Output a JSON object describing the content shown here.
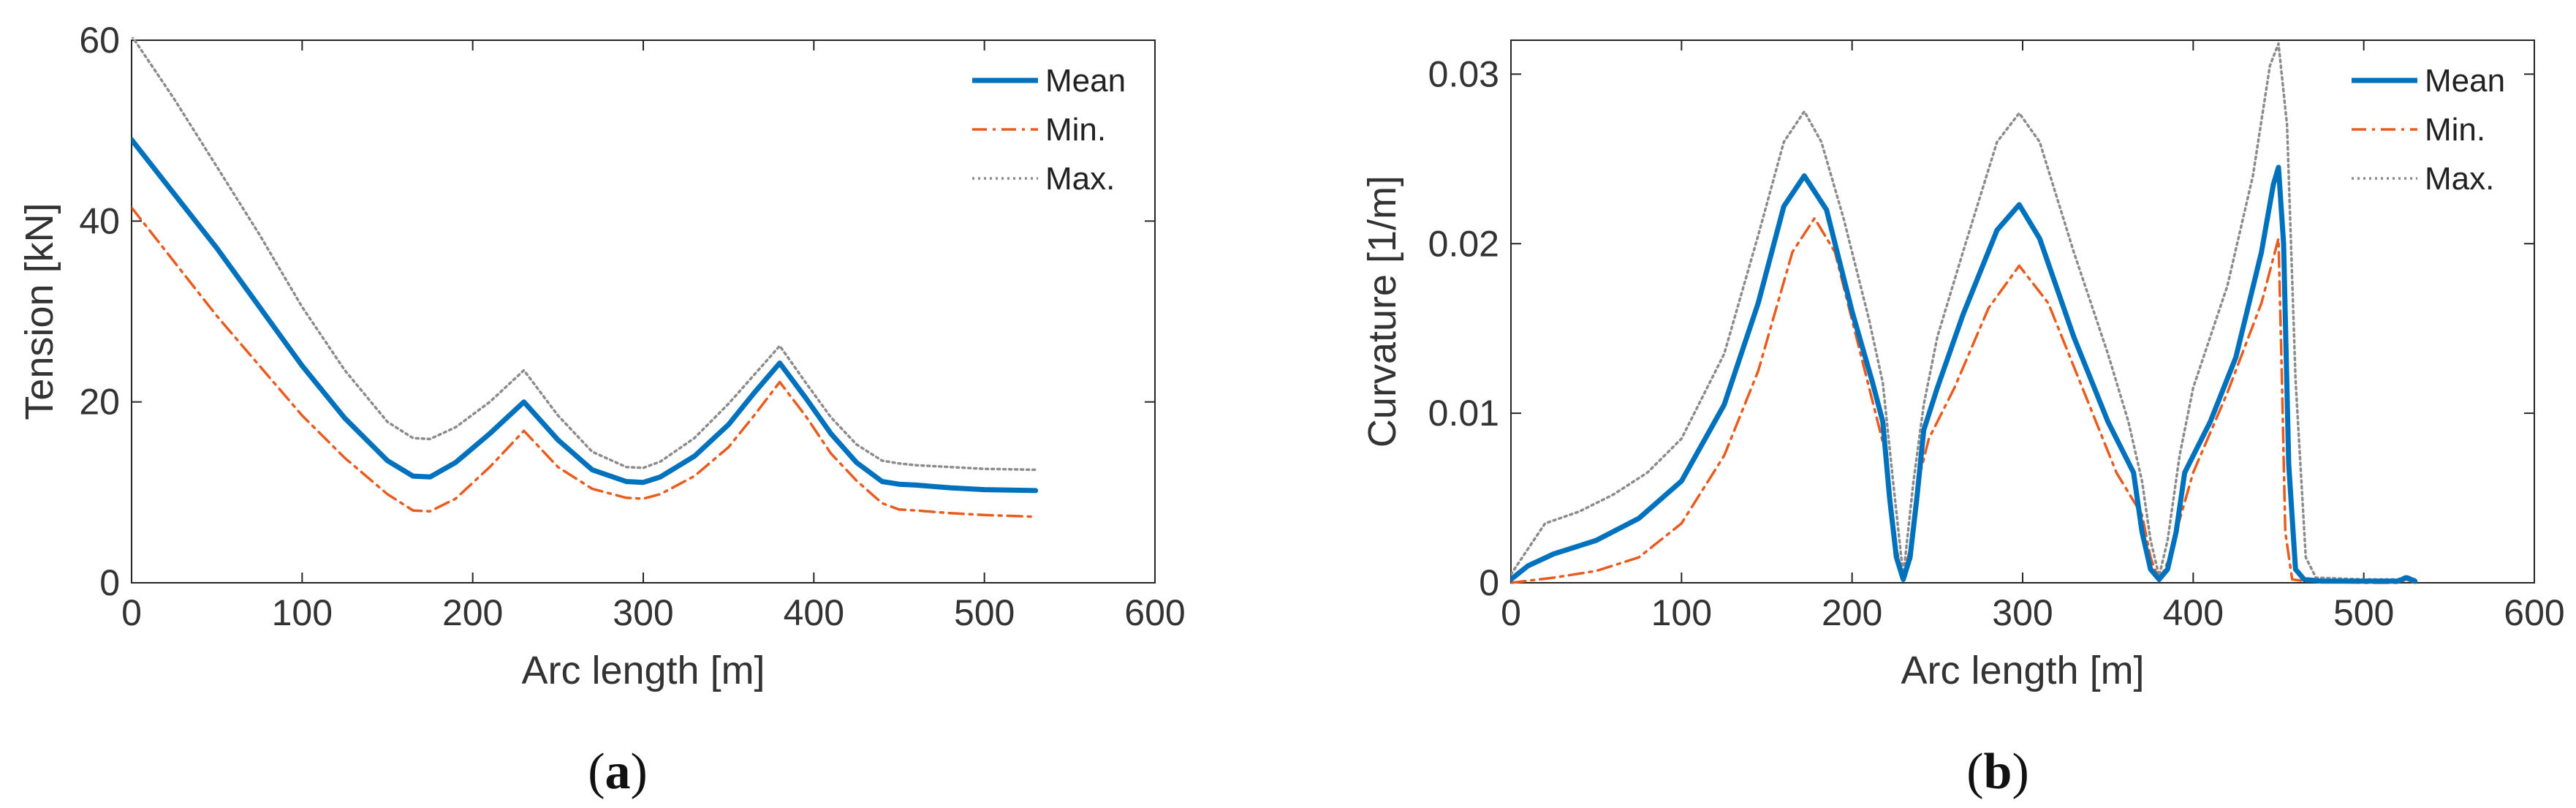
{
  "chart_data": [
    {
      "panel": "(a)",
      "caption_open": "(",
      "caption_letter": "a",
      "caption_close": ")",
      "type": "line",
      "xlabel": "Arc length [m]",
      "ylabel": "Tension [kN]",
      "xlim": [
        0,
        600
      ],
      "ylim": [
        0,
        60
      ],
      "xticks": [
        0,
        100,
        200,
        300,
        400,
        500,
        600
      ],
      "xtick_labels": [
        "0",
        "100",
        "200",
        "300",
        "400",
        "500",
        "600"
      ],
      "yticks": [
        0,
        20,
        40,
        60
      ],
      "ytick_labels": [
        "0",
        "20",
        "40",
        "60"
      ],
      "grid": false,
      "legend_position": "top-right",
      "series": [
        {
          "name": "Mean",
          "color": "#0072BD",
          "style": "solid",
          "x": [
            0,
            25,
            50,
            75,
            100,
            125,
            150,
            165,
            175,
            190,
            210,
            230,
            250,
            270,
            290,
            300,
            310,
            330,
            350,
            365,
            380,
            395,
            410,
            425,
            440,
            450,
            460,
            480,
            500,
            530
          ],
          "y": [
            49,
            43,
            37,
            30.5,
            24,
            18.2,
            13.5,
            11.8,
            11.7,
            13.3,
            16.5,
            20,
            15.8,
            12.5,
            11.2,
            11.1,
            11.7,
            14,
            17.5,
            21,
            24.3,
            20.5,
            16.5,
            13.3,
            11.2,
            10.9,
            10.8,
            10.5,
            10.3,
            10.2
          ]
        },
        {
          "name": "Min.",
          "color": "#EA5B1E",
          "style": "dashdot",
          "x": [
            0,
            25,
            50,
            75,
            100,
            125,
            150,
            165,
            175,
            190,
            210,
            230,
            250,
            270,
            290,
            300,
            310,
            330,
            350,
            365,
            380,
            395,
            410,
            425,
            440,
            450,
            460,
            480,
            500,
            530
          ],
          "y": [
            41.5,
            35.5,
            29.5,
            24,
            18.5,
            13.8,
            9.8,
            8.0,
            7.9,
            9.3,
            12.8,
            16.8,
            12.8,
            10.4,
            9.4,
            9.3,
            9.8,
            11.8,
            15,
            18.5,
            22.2,
            18.5,
            14.3,
            11.3,
            8.8,
            8.1,
            8.0,
            7.7,
            7.5,
            7.3
          ]
        },
        {
          "name": "Max.",
          "color": "#8C8C8C",
          "style": "dotted",
          "x": [
            0,
            25,
            50,
            75,
            100,
            125,
            150,
            165,
            175,
            190,
            210,
            230,
            250,
            270,
            290,
            300,
            310,
            330,
            350,
            365,
            380,
            395,
            410,
            425,
            440,
            450,
            460,
            480,
            500,
            530
          ],
          "y": [
            60.5,
            53.5,
            46,
            38.5,
            30.5,
            23.5,
            17.8,
            16.0,
            15.9,
            17.2,
            20,
            23.5,
            18.5,
            14.5,
            12.8,
            12.7,
            13.4,
            16,
            19.8,
            23,
            26.2,
            22.2,
            18.3,
            15.3,
            13.5,
            13.2,
            13.0,
            12.8,
            12.6,
            12.5
          ]
        }
      ]
    },
    {
      "panel": "(b)",
      "caption_open": "(",
      "caption_letter": "b",
      "caption_close": ")",
      "type": "line",
      "xlabel": "Arc length [m]",
      "ylabel": "Curvature [1/m]",
      "xlim": [
        0,
        600
      ],
      "ylim": [
        0,
        0.032
      ],
      "xticks": [
        0,
        100,
        200,
        300,
        400,
        500,
        600
      ],
      "xtick_labels": [
        "0",
        "100",
        "200",
        "300",
        "400",
        "500",
        "600"
      ],
      "yticks": [
        0,
        0.01,
        0.02,
        0.03
      ],
      "ytick_labels": [
        "0",
        "0.01",
        "0.02",
        "0.03"
      ],
      "grid": false,
      "legend_position": "top-right",
      "series": [
        {
          "name": "Mean",
          "color": "#0072BD",
          "style": "solid",
          "x": [
            0,
            10,
            25,
            50,
            75,
            100,
            125,
            145,
            160,
            172,
            185,
            200,
            212,
            218,
            222,
            226,
            230,
            234,
            238,
            242,
            250,
            265,
            285,
            298,
            310,
            330,
            350,
            365,
            370,
            375,
            380,
            385,
            390,
            395,
            410,
            425,
            440,
            447,
            450,
            453,
            456,
            460,
            465,
            475,
            500,
            520,
            525,
            530
          ],
          "y": [
            0.0002,
            0.001,
            0.0017,
            0.0025,
            0.0038,
            0.006,
            0.0105,
            0.0165,
            0.0222,
            0.024,
            0.022,
            0.016,
            0.0118,
            0.0095,
            0.005,
            0.0015,
            0.0002,
            0.0015,
            0.005,
            0.009,
            0.0115,
            0.0158,
            0.0208,
            0.0223,
            0.0203,
            0.0145,
            0.0095,
            0.0065,
            0.003,
            0.0008,
            0.0002,
            0.0008,
            0.003,
            0.0065,
            0.0095,
            0.0133,
            0.0195,
            0.0235,
            0.0245,
            0.02,
            0.007,
            0.0008,
            0.0002,
            0.0001,
            0.0001,
            0.0001,
            0.0003,
            0.0001
          ]
        },
        {
          "name": "Min.",
          "color": "#EA5B1E",
          "style": "dashdot",
          "x": [
            0,
            25,
            50,
            75,
            100,
            125,
            145,
            165,
            178,
            190,
            205,
            215,
            220,
            225,
            230,
            235,
            240,
            245,
            260,
            280,
            298,
            315,
            335,
            355,
            370,
            375,
            380,
            385,
            390,
            400,
            420,
            440,
            450,
            452,
            454,
            458,
            465,
            500,
            520,
            525,
            530
          ],
          "y": [
            0,
            0.0003,
            0.0007,
            0.0015,
            0.0035,
            0.0075,
            0.0125,
            0.0195,
            0.0215,
            0.0195,
            0.0135,
            0.0095,
            0.0075,
            0.0025,
            0.0002,
            0.0025,
            0.0065,
            0.0085,
            0.0115,
            0.0162,
            0.0187,
            0.0165,
            0.0115,
            0.0065,
            0.004,
            0.0015,
            0.0001,
            0.0012,
            0.003,
            0.0065,
            0.0112,
            0.0165,
            0.0203,
            0.012,
            0.003,
            0.0002,
            0.0001,
            0,
            0,
            0.0002,
            0
          ]
        },
        {
          "name": "Max.",
          "color": "#8C8C8C",
          "style": "dotted",
          "x": [
            0,
            10,
            20,
            40,
            60,
            80,
            100,
            125,
            145,
            160,
            172,
            182,
            195,
            210,
            218,
            224,
            230,
            236,
            242,
            250,
            265,
            285,
            298,
            310,
            330,
            350,
            362,
            370,
            375,
            380,
            385,
            392,
            400,
            420,
            435,
            445,
            450,
            455,
            460,
            466,
            472,
            500,
            520,
            525,
            530
          ],
          "y": [
            0.0005,
            0.002,
            0.0035,
            0.0042,
            0.0052,
            0.0065,
            0.0085,
            0.0135,
            0.0205,
            0.026,
            0.0278,
            0.026,
            0.0215,
            0.0155,
            0.0118,
            0.006,
            0.0004,
            0.006,
            0.0105,
            0.0145,
            0.0195,
            0.026,
            0.0277,
            0.026,
            0.0195,
            0.0135,
            0.0095,
            0.006,
            0.0025,
            0.0004,
            0.0025,
            0.0075,
            0.0115,
            0.0175,
            0.024,
            0.0305,
            0.0318,
            0.027,
            0.012,
            0.0015,
            0.0003,
            0.0002,
            0.0002,
            0.0004,
            0.0002
          ]
        }
      ]
    }
  ]
}
